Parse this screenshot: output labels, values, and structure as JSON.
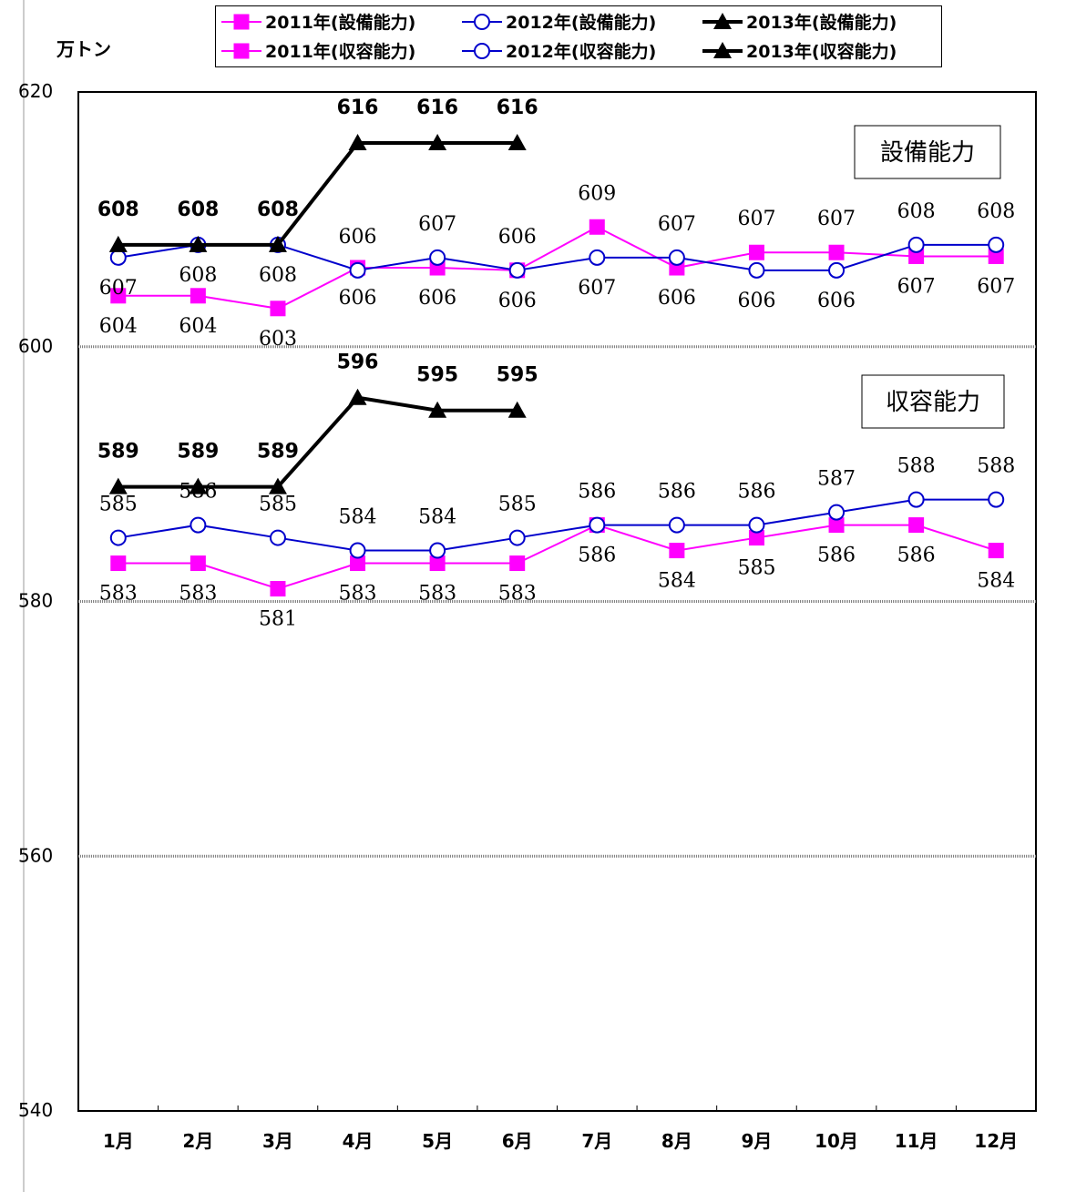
{
  "unit_label": "万トン",
  "legend": {
    "items": [
      {
        "label": "2011年(設備能力)",
        "series": "2011"
      },
      {
        "label": "2012年(設備能力)",
        "series": "2012"
      },
      {
        "label": "2013年(設備能力)",
        "series": "2013"
      },
      {
        "label": "2011年(収容能力)",
        "series": "2011"
      },
      {
        "label": "2012年(収容能力)",
        "series": "2012"
      },
      {
        "label": "2013年(収容能力)",
        "series": "2013"
      }
    ]
  },
  "colors": {
    "2011": "#ff00ff",
    "2012": "#0000cc",
    "2013": "#000000",
    "grid": "#808080"
  },
  "chart_data": {
    "type": "line",
    "categories": [
      "1月",
      "2月",
      "3月",
      "4月",
      "5月",
      "6月",
      "7月",
      "8月",
      "9月",
      "10月",
      "11月",
      "12月"
    ],
    "ylim": [
      540,
      620
    ],
    "yticks": [
      540,
      560,
      580,
      600,
      620
    ],
    "grid": true,
    "legend_position": "top",
    "groups": [
      {
        "name": "設備能力",
        "series": [
          {
            "name": "2011年(設備能力)",
            "year": "2011",
            "values": [
              604,
              604,
              603,
              606.2,
              606.2,
              606,
              609.4,
              606.2,
              607.4,
              607.4,
              607.1,
              607.1
            ],
            "labels": [
              "604",
              "604",
              "603",
              "606",
              "606",
              "606",
              "609",
              "606",
              "607",
              "607",
              "607",
              "607"
            ],
            "label_pos": [
              "below",
              "below",
              "below",
              "below",
              "below",
              "below",
              "above",
              "below",
              "above",
              "above",
              "below",
              "below"
            ]
          },
          {
            "name": "2012年(設備能力)",
            "year": "2012",
            "values": [
              607,
              608,
              608,
              606,
              607,
              606,
              607,
              607,
              606,
              606,
              608,
              608
            ],
            "labels": [
              "607",
              "608",
              "608",
              "606",
              "607",
              "606",
              "607",
              "607",
              "606",
              "606",
              "608",
              "608"
            ],
            "label_pos": [
              "below",
              "below",
              "below",
              "above",
              "above",
              "above",
              "below",
              "above",
              "below",
              "below",
              "above",
              "above"
            ]
          },
          {
            "name": "2013年(設備能力)",
            "year": "2013",
            "values": [
              608,
              608,
              608,
              616,
              616,
              616
            ],
            "labels": [
              "608",
              "608",
              "608",
              "616",
              "616",
              "616"
            ],
            "label_pos": [
              "above",
              "above",
              "above",
              "above",
              "above",
              "above"
            ]
          }
        ]
      },
      {
        "name": "収容能力",
        "series": [
          {
            "name": "2011年(収容能力)",
            "year": "2011",
            "values": [
              583,
              583,
              581,
              583,
              583,
              583,
              586,
              584,
              585,
              586,
              586,
              584
            ],
            "labels": [
              "583",
              "583",
              "581",
              "583",
              "583",
              "583",
              "586",
              "584",
              "585",
              "586",
              "586",
              "584"
            ],
            "label_pos": [
              "below",
              "below",
              "below",
              "below",
              "below",
              "below",
              "below",
              "below",
              "below",
              "below",
              "below",
              "below"
            ]
          },
          {
            "name": "2012年(収容能力)",
            "year": "2012",
            "values": [
              585,
              586,
              585,
              584,
              584,
              585,
              586,
              586,
              586,
              587,
              588,
              588
            ],
            "labels": [
              "585",
              "586",
              "585",
              "584",
              "584",
              "585",
              "586",
              "586",
              "586",
              "587",
              "588",
              "588"
            ],
            "label_pos": [
              "above",
              "above",
              "above",
              "above",
              "above",
              "above",
              "above",
              "above",
              "above",
              "above",
              "above",
              "above"
            ]
          },
          {
            "name": "2013年(収容能力)",
            "year": "2013",
            "values": [
              589,
              589,
              589,
              596,
              595,
              595
            ],
            "labels": [
              "589",
              "589",
              "589",
              "596",
              "595",
              "595"
            ],
            "label_pos": [
              "above",
              "above",
              "above",
              "above",
              "above",
              "above"
            ]
          }
        ]
      }
    ]
  }
}
